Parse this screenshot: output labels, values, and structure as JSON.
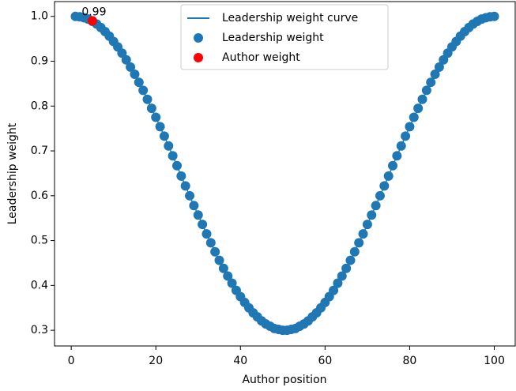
{
  "chart_data": {
    "type": "scatter",
    "xlabel": "Author position",
    "ylabel": "Leadership weight",
    "xlim": [
      -3.95,
      104.95
    ],
    "ylim": [
      0.265,
      1.033
    ],
    "xticks": [
      0,
      20,
      40,
      60,
      80,
      100
    ],
    "yticks": [
      0.3,
      0.4,
      0.5,
      0.6,
      0.7,
      0.8,
      0.9,
      {
        "value": 1.0,
        "label": "1.0"
      }
    ],
    "legend": "upper center",
    "series": [
      {
        "name": "Leadership weight curve",
        "kind": "line",
        "color": "#1f77b4",
        "x": [
          1,
          2,
          3,
          4,
          5,
          6,
          7,
          8,
          9,
          10,
          11,
          12,
          13,
          14,
          15,
          16,
          17,
          18,
          19,
          20,
          21,
          22,
          23,
          24,
          25,
          26,
          27,
          28,
          29,
          30,
          31,
          32,
          33,
          34,
          35,
          36,
          37,
          38,
          39,
          40,
          41,
          42,
          43,
          44,
          45,
          46,
          47,
          48,
          49,
          50,
          51,
          52,
          53,
          54,
          55,
          56,
          57,
          58,
          59,
          60,
          61,
          62,
          63,
          64,
          65,
          66,
          67,
          68,
          69,
          70,
          71,
          72,
          73,
          74,
          75,
          76,
          77,
          78,
          79,
          80,
          81,
          82,
          83,
          84,
          85,
          86,
          87,
          88,
          89,
          90,
          91,
          92,
          93,
          94,
          95,
          96,
          97,
          98,
          99,
          100
        ],
        "values": [
          1.0,
          0.999,
          0.997,
          0.994,
          0.989,
          0.983,
          0.975,
          0.966,
          0.956,
          0.944,
          0.932,
          0.918,
          0.903,
          0.887,
          0.871,
          0.853,
          0.835,
          0.815,
          0.795,
          0.775,
          0.754,
          0.733,
          0.711,
          0.689,
          0.667,
          0.644,
          0.622,
          0.6,
          0.578,
          0.557,
          0.536,
          0.515,
          0.495,
          0.475,
          0.456,
          0.438,
          0.421,
          0.405,
          0.389,
          0.375,
          0.362,
          0.35,
          0.339,
          0.33,
          0.321,
          0.314,
          0.309,
          0.304,
          0.302,
          0.3,
          0.3,
          0.302,
          0.304,
          0.309,
          0.314,
          0.321,
          0.33,
          0.339,
          0.35,
          0.362,
          0.375,
          0.389,
          0.405,
          0.421,
          0.438,
          0.456,
          0.475,
          0.495,
          0.515,
          0.536,
          0.557,
          0.578,
          0.6,
          0.622,
          0.644,
          0.667,
          0.689,
          0.711,
          0.733,
          0.754,
          0.775,
          0.795,
          0.815,
          0.835,
          0.853,
          0.871,
          0.887,
          0.903,
          0.918,
          0.932,
          0.944,
          0.956,
          0.966,
          0.975,
          0.983,
          0.989,
          0.994,
          0.997,
          0.999,
          1.0
        ]
      },
      {
        "name": "Leadership weight",
        "kind": "scatter",
        "color": "#1f77b4",
        "x": [
          1,
          2,
          3,
          4,
          5,
          6,
          7,
          8,
          9,
          10,
          11,
          12,
          13,
          14,
          15,
          16,
          17,
          18,
          19,
          20,
          21,
          22,
          23,
          24,
          25,
          26,
          27,
          28,
          29,
          30,
          31,
          32,
          33,
          34,
          35,
          36,
          37,
          38,
          39,
          40,
          41,
          42,
          43,
          44,
          45,
          46,
          47,
          48,
          49,
          50,
          51,
          52,
          53,
          54,
          55,
          56,
          57,
          58,
          59,
          60,
          61,
          62,
          63,
          64,
          65,
          66,
          67,
          68,
          69,
          70,
          71,
          72,
          73,
          74,
          75,
          76,
          77,
          78,
          79,
          80,
          81,
          82,
          83,
          84,
          85,
          86,
          87,
          88,
          89,
          90,
          91,
          92,
          93,
          94,
          95,
          96,
          97,
          98,
          99,
          100
        ],
        "values": [
          1.0,
          0.999,
          0.997,
          0.994,
          0.989,
          0.983,
          0.975,
          0.966,
          0.956,
          0.944,
          0.932,
          0.918,
          0.903,
          0.887,
          0.871,
          0.853,
          0.835,
          0.815,
          0.795,
          0.775,
          0.754,
          0.733,
          0.711,
          0.689,
          0.667,
          0.644,
          0.622,
          0.6,
          0.578,
          0.557,
          0.536,
          0.515,
          0.495,
          0.475,
          0.456,
          0.438,
          0.421,
          0.405,
          0.389,
          0.375,
          0.362,
          0.35,
          0.339,
          0.33,
          0.321,
          0.314,
          0.309,
          0.304,
          0.302,
          0.3,
          0.3,
          0.302,
          0.304,
          0.309,
          0.314,
          0.321,
          0.33,
          0.339,
          0.35,
          0.362,
          0.375,
          0.389,
          0.405,
          0.421,
          0.438,
          0.456,
          0.475,
          0.495,
          0.515,
          0.536,
          0.557,
          0.578,
          0.6,
          0.622,
          0.644,
          0.667,
          0.689,
          0.711,
          0.733,
          0.754,
          0.775,
          0.795,
          0.815,
          0.835,
          0.853,
          0.871,
          0.887,
          0.903,
          0.918,
          0.932,
          0.944,
          0.956,
          0.966,
          0.975,
          0.983,
          0.989,
          0.994,
          0.997,
          0.999,
          1.0
        ]
      },
      {
        "name": "Author weight",
        "kind": "scatter",
        "color": "#ff0000",
        "annotate": true,
        "x": [
          5
        ],
        "values": [
          0.99
        ]
      }
    ]
  }
}
